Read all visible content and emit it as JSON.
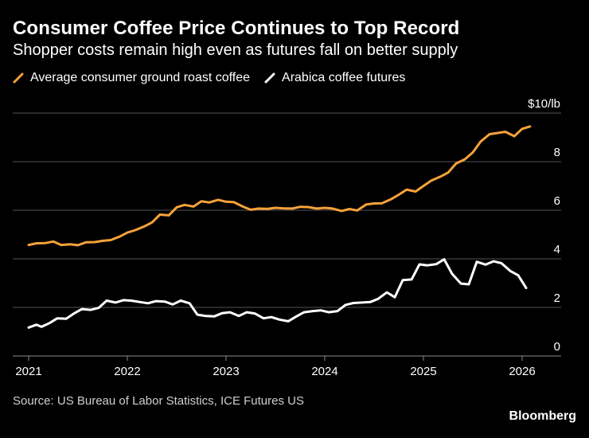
{
  "header": {
    "title": "Consumer Coffee Price Continues to Top Record",
    "subtitle": "Shopper costs remain high even as futures fall on better supply"
  },
  "footer": {
    "source": "Source: US Bureau of Labor Statistics, ICE Futures US",
    "brand": "Bloomberg"
  },
  "colors": {
    "background": "#000000",
    "consumer": "#f7a23a",
    "futures": "#ffffff",
    "grid": "#555555"
  },
  "chart_data": {
    "type": "line",
    "title": "Consumer Coffee Price Continues to Top Record",
    "subtitle": "Shopper costs remain high even as futures fall on better supply",
    "y_unit_label": "$10/lb",
    "ylim": [
      0,
      10
    ],
    "y_ticks": [
      0,
      2,
      4,
      6,
      8,
      10
    ],
    "y_tick_labels": [
      "0",
      "2",
      "4",
      "6",
      "8",
      "$10/lb"
    ],
    "x_ticks": [
      2021,
      2022,
      2023,
      2024,
      2025,
      2026
    ],
    "x_tick_labels": [
      "2021",
      "2022",
      "2023",
      "2024",
      "2025",
      "2026"
    ],
    "grid": "horizontal",
    "legend_position": "top-left",
    "series": [
      {
        "name": "Average consumer ground roast coffee",
        "color": "#f7a23a",
        "points": [
          [
            2021.0,
            4.57
          ],
          [
            2021.08,
            4.64
          ],
          [
            2021.17,
            4.65
          ],
          [
            2021.25,
            4.71
          ],
          [
            2021.33,
            4.57
          ],
          [
            2021.42,
            4.6
          ],
          [
            2021.5,
            4.56
          ],
          [
            2021.58,
            4.68
          ],
          [
            2021.67,
            4.69
          ],
          [
            2021.75,
            4.74
          ],
          [
            2021.83,
            4.77
          ],
          [
            2021.92,
            4.91
          ],
          [
            2022.0,
            5.08
          ],
          [
            2022.08,
            5.18
          ],
          [
            2022.17,
            5.33
          ],
          [
            2022.25,
            5.5
          ],
          [
            2022.33,
            5.82
          ],
          [
            2022.42,
            5.79
          ],
          [
            2022.5,
            6.12
          ],
          [
            2022.58,
            6.22
          ],
          [
            2022.67,
            6.15
          ],
          [
            2022.75,
            6.37
          ],
          [
            2022.83,
            6.32
          ],
          [
            2022.92,
            6.43
          ],
          [
            2023.0,
            6.35
          ],
          [
            2023.08,
            6.33
          ],
          [
            2023.17,
            6.15
          ],
          [
            2023.25,
            6.02
          ],
          [
            2023.33,
            6.07
          ],
          [
            2023.42,
            6.06
          ],
          [
            2023.5,
            6.1
          ],
          [
            2023.58,
            6.08
          ],
          [
            2023.67,
            6.07
          ],
          [
            2023.75,
            6.14
          ],
          [
            2023.83,
            6.13
          ],
          [
            2023.92,
            6.07
          ],
          [
            2024.0,
            6.1
          ],
          [
            2024.08,
            6.07
          ],
          [
            2024.17,
            5.97
          ],
          [
            2024.25,
            6.05
          ],
          [
            2024.33,
            5.99
          ],
          [
            2024.42,
            6.24
          ],
          [
            2024.5,
            6.28
          ],
          [
            2024.58,
            6.29
          ],
          [
            2024.67,
            6.45
          ],
          [
            2024.75,
            6.64
          ],
          [
            2024.83,
            6.85
          ],
          [
            2024.92,
            6.77
          ],
          [
            2025.0,
            7.0
          ],
          [
            2025.08,
            7.22
          ],
          [
            2025.17,
            7.38
          ],
          [
            2025.25,
            7.55
          ],
          [
            2025.33,
            7.92
          ],
          [
            2025.42,
            8.1
          ],
          [
            2025.5,
            8.38
          ],
          [
            2025.58,
            8.83
          ],
          [
            2025.67,
            9.13
          ],
          [
            2025.75,
            9.18
          ],
          [
            2025.83,
            9.23
          ],
          [
            2025.92,
            9.05
          ],
          [
            2026.0,
            9.35
          ],
          [
            2026.08,
            9.45
          ]
        ]
      },
      {
        "name": "Arabica coffee futures",
        "color": "#ffffff",
        "points": [
          [
            2021.0,
            1.17
          ],
          [
            2021.08,
            1.29
          ],
          [
            2021.13,
            1.2
          ],
          [
            2021.21,
            1.35
          ],
          [
            2021.29,
            1.55
          ],
          [
            2021.38,
            1.53
          ],
          [
            2021.46,
            1.75
          ],
          [
            2021.54,
            1.93
          ],
          [
            2021.63,
            1.9
          ],
          [
            2021.71,
            1.98
          ],
          [
            2021.79,
            2.28
          ],
          [
            2021.88,
            2.2
          ],
          [
            2021.96,
            2.3
          ],
          [
            2022.04,
            2.28
          ],
          [
            2022.13,
            2.22
          ],
          [
            2022.21,
            2.17
          ],
          [
            2022.29,
            2.26
          ],
          [
            2022.38,
            2.24
          ],
          [
            2022.46,
            2.12
          ],
          [
            2022.54,
            2.28
          ],
          [
            2022.63,
            2.17
          ],
          [
            2022.71,
            1.7
          ],
          [
            2022.79,
            1.65
          ],
          [
            2022.88,
            1.63
          ],
          [
            2022.96,
            1.76
          ],
          [
            2023.04,
            1.8
          ],
          [
            2023.13,
            1.65
          ],
          [
            2023.21,
            1.8
          ],
          [
            2023.29,
            1.75
          ],
          [
            2023.38,
            1.55
          ],
          [
            2023.46,
            1.6
          ],
          [
            2023.54,
            1.5
          ],
          [
            2023.63,
            1.43
          ],
          [
            2023.71,
            1.62
          ],
          [
            2023.79,
            1.8
          ],
          [
            2023.88,
            1.85
          ],
          [
            2023.96,
            1.88
          ],
          [
            2024.04,
            1.8
          ],
          [
            2024.13,
            1.85
          ],
          [
            2024.21,
            2.1
          ],
          [
            2024.29,
            2.18
          ],
          [
            2024.38,
            2.2
          ],
          [
            2024.46,
            2.22
          ],
          [
            2024.54,
            2.35
          ],
          [
            2024.63,
            2.62
          ],
          [
            2024.71,
            2.42
          ],
          [
            2024.79,
            3.12
          ],
          [
            2024.88,
            3.15
          ],
          [
            2024.96,
            3.77
          ],
          [
            2025.04,
            3.73
          ],
          [
            2025.13,
            3.78
          ],
          [
            2025.21,
            3.98
          ],
          [
            2025.29,
            3.38
          ],
          [
            2025.38,
            2.98
          ],
          [
            2025.46,
            2.95
          ],
          [
            2025.54,
            3.88
          ],
          [
            2025.63,
            3.76
          ],
          [
            2025.71,
            3.9
          ],
          [
            2025.79,
            3.82
          ],
          [
            2025.88,
            3.5
          ],
          [
            2025.96,
            3.32
          ],
          [
            2026.04,
            2.8
          ]
        ]
      }
    ]
  }
}
